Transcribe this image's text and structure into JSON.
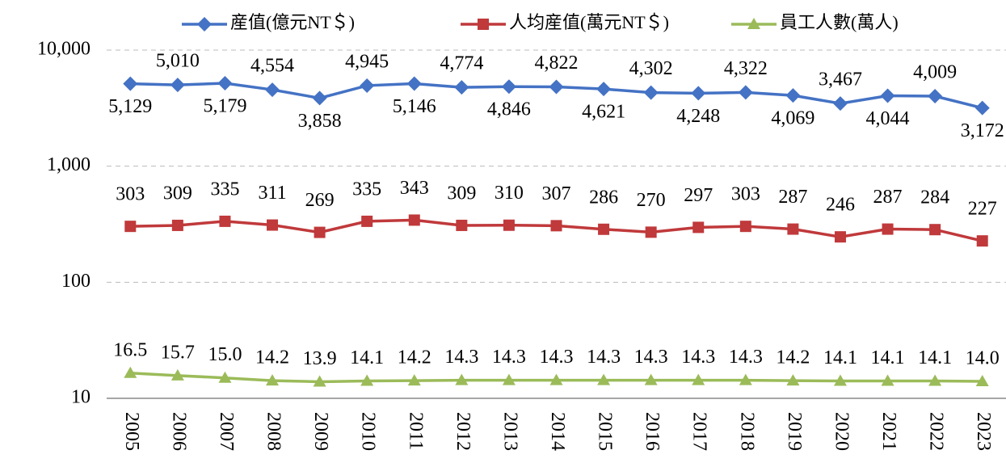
{
  "chart_data": {
    "type": "line",
    "categories": [
      "2005",
      "2006",
      "2007",
      "2008",
      "2009",
      "2010",
      "2011",
      "2012",
      "2013",
      "2014",
      "2015",
      "2016",
      "2017",
      "2018",
      "2019",
      "2020",
      "2021",
      "2022",
      "2023"
    ],
    "series": [
      {
        "name": "産值(億元NT＄)",
        "color": "#4472c4",
        "marker": "diamond",
        "values": [
          5129,
          5010,
          5179,
          4554,
          3858,
          4945,
          5146,
          4774,
          4846,
          4822,
          4621,
          4302,
          4248,
          4322,
          4069,
          3467,
          4044,
          4009,
          3172
        ],
        "value_labels": [
          "5,129",
          "5,010",
          "5,179",
          "4,554",
          "3,858",
          "4,945",
          "5,146",
          "4,774",
          "4,846",
          "4,822",
          "4,621",
          "4,302",
          "4,248",
          "4,322",
          "4,069",
          "3,467",
          "4,044",
          "4,009",
          "3,172"
        ]
      },
      {
        "name": "人均産值(萬元NT＄)",
        "color": "#c0393b",
        "marker": "square",
        "values": [
          303,
          309,
          335,
          311,
          269,
          335,
          343,
          309,
          310,
          307,
          286,
          270,
          297,
          303,
          287,
          246,
          287,
          284,
          227
        ]
      },
      {
        "name": "員工人數(萬人)",
        "color": "#9bbb59",
        "marker": "triangle",
        "values": [
          16.5,
          15.7,
          15.0,
          14.2,
          13.9,
          14.1,
          14.2,
          14.3,
          14.3,
          14.3,
          14.3,
          14.3,
          14.3,
          14.3,
          14.2,
          14.1,
          14.1,
          14.1,
          14.0
        ],
        "value_labels": [
          "16.5",
          "15.7",
          "15.0",
          "14.2",
          "13.9",
          "14.1",
          "14.2",
          "14.3",
          "14.3",
          "14.3",
          "14.3",
          "14.3",
          "14.3",
          "14.3",
          "14.2",
          "14.1",
          "14.1",
          "14.1",
          "14.0"
        ]
      }
    ],
    "ylim": [
      10,
      10000
    ],
    "log_y": true,
    "yticks": [
      10,
      100,
      {
        "value": 1000,
        "label": "1,000"
      },
      {
        "value": 10000,
        "label": "10,000"
      }
    ],
    "grid": true,
    "legend": "top"
  }
}
